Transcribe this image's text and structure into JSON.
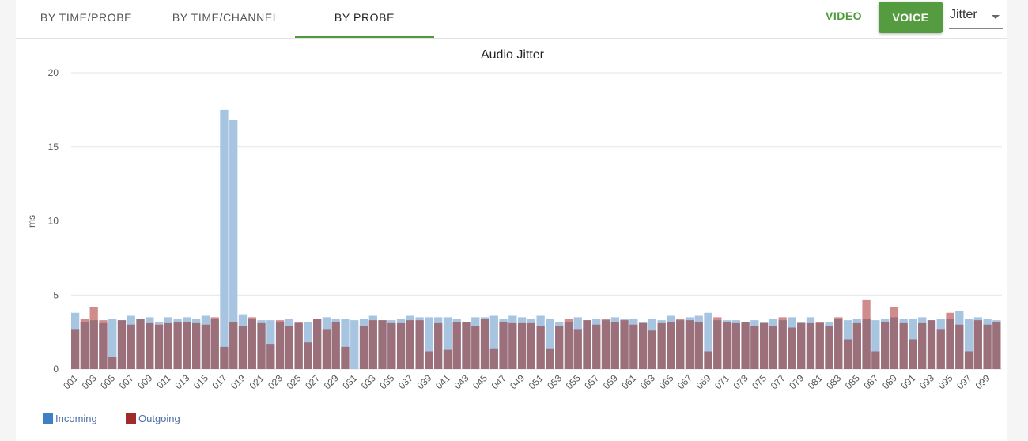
{
  "tabs": [
    {
      "label": "BY TIME/PROBE",
      "active": false
    },
    {
      "label": "BY TIME/CHANNEL",
      "active": false
    },
    {
      "label": "BY PROBE",
      "active": true
    }
  ],
  "toolbar": {
    "video_label": "VIDEO",
    "voice_label": "VOICE",
    "metric_value": "Jitter"
  },
  "colors": {
    "accent": "#4e9a3a",
    "incoming": "#a7c4e1",
    "outgoing": "#9b707b",
    "outgoing_above": "#d08c8c",
    "legend_incoming": "#3f7fc3",
    "legend_outgoing": "#a12a2a"
  },
  "chart_data": {
    "type": "bar",
    "title": "Audio Jitter",
    "xlabel": "",
    "ylabel": "ms",
    "ylim": [
      0,
      20
    ],
    "yticks": [
      0,
      5,
      10,
      15,
      20
    ],
    "grid": true,
    "legend_position": "bottom-left",
    "categories": [
      "001",
      "002",
      "003",
      "004",
      "005",
      "006",
      "007",
      "008",
      "009",
      "010",
      "011",
      "012",
      "013",
      "014",
      "015",
      "016",
      "017",
      "018",
      "019",
      "020",
      "021",
      "022",
      "023",
      "024",
      "025",
      "026",
      "027",
      "028",
      "029",
      "030",
      "031",
      "032",
      "033",
      "034",
      "035",
      "036",
      "037",
      "038",
      "039",
      "040",
      "041",
      "042",
      "043",
      "044",
      "045",
      "046",
      "047",
      "048",
      "049",
      "050",
      "051",
      "052",
      "053",
      "054",
      "055",
      "056",
      "057",
      "058",
      "059",
      "060",
      "061",
      "062",
      "063",
      "064",
      "065",
      "066",
      "067",
      "068",
      "069",
      "070",
      "071",
      "072",
      "073",
      "074",
      "075",
      "076",
      "077",
      "078",
      "079",
      "080",
      "081",
      "082",
      "083",
      "084",
      "085",
      "086",
      "087",
      "088",
      "089",
      "090",
      "091",
      "092",
      "093",
      "094",
      "095",
      "096",
      "097",
      "098",
      "099",
      "100"
    ],
    "tick_labels": [
      "001",
      "003",
      "005",
      "007",
      "009",
      "011",
      "013",
      "015",
      "017",
      "019",
      "021",
      "023",
      "025",
      "027",
      "029",
      "031",
      "033",
      "035",
      "037",
      "039",
      "041",
      "043",
      "045",
      "047",
      "049",
      "051",
      "053",
      "055",
      "057",
      "059",
      "061",
      "063",
      "065",
      "067",
      "069",
      "071",
      "073",
      "075",
      "077",
      "079",
      "081",
      "083",
      "085",
      "087",
      "089",
      "091",
      "093",
      "095",
      "097",
      "099"
    ],
    "series": [
      {
        "name": "Incoming",
        "values": [
          3.8,
          3.2,
          3.3,
          3.1,
          3.4,
          3.3,
          3.6,
          3.4,
          3.5,
          3.2,
          3.5,
          3.4,
          3.5,
          3.4,
          3.6,
          3.4,
          17.5,
          16.8,
          3.7,
          3.4,
          3.3,
          3.3,
          3.2,
          3.4,
          3.1,
          3.2,
          3.4,
          3.5,
          3.4,
          3.4,
          3.3,
          3.4,
          3.6,
          3.3,
          3.3,
          3.4,
          3.6,
          3.5,
          3.5,
          3.5,
          3.5,
          3.4,
          3.2,
          3.5,
          3.5,
          3.6,
          3.4,
          3.6,
          3.5,
          3.4,
          3.6,
          3.4,
          3.2,
          3.2,
          3.5,
          3.3,
          3.4,
          3.3,
          3.5,
          3.4,
          3.4,
          3.2,
          3.4,
          3.3,
          3.6,
          3.3,
          3.5,
          3.6,
          3.8,
          3.3,
          3.3,
          3.3,
          3.2,
          3.3,
          3.2,
          3.4,
          3.3,
          3.5,
          3.2,
          3.5,
          3.1,
          3.2,
          3.4,
          3.3,
          3.4,
          3.4,
          3.3,
          3.4,
          3.5,
          3.4,
          3.4,
          3.5,
          3.3,
          3.4,
          3.4,
          3.9,
          3.4,
          3.5,
          3.4,
          3.3
        ]
      },
      {
        "name": "Outgoing",
        "values": [
          2.7,
          3.4,
          4.2,
          3.3,
          0.8,
          3.3,
          3.0,
          3.4,
          3.1,
          3.0,
          3.1,
          3.2,
          3.2,
          3.1,
          3.0,
          3.5,
          1.5,
          3.2,
          2.9,
          3.5,
          3.1,
          1.7,
          3.3,
          2.9,
          3.2,
          1.8,
          3.4,
          2.7,
          3.2,
          1.5,
          0.0,
          2.9,
          3.3,
          3.3,
          3.1,
          3.1,
          3.3,
          3.3,
          1.2,
          3.1,
          1.3,
          3.2,
          3.2,
          2.9,
          3.4,
          1.4,
          3.2,
          3.1,
          3.1,
          3.1,
          2.9,
          1.4,
          2.9,
          3.4,
          2.7,
          3.3,
          3.0,
          3.4,
          3.2,
          3.3,
          3.0,
          3.1,
          2.6,
          3.1,
          3.2,
          3.4,
          3.3,
          3.2,
          1.2,
          3.5,
          3.2,
          3.1,
          3.2,
          2.9,
          3.1,
          2.9,
          3.5,
          2.8,
          3.1,
          3.1,
          3.2,
          2.9,
          3.5,
          2.0,
          3.1,
          4.7,
          1.2,
          3.2,
          4.2,
          3.1,
          2.0,
          3.1,
          3.3,
          2.7,
          3.8,
          3.0,
          1.2,
          3.3,
          3.0,
          3.2
        ]
      }
    ]
  }
}
